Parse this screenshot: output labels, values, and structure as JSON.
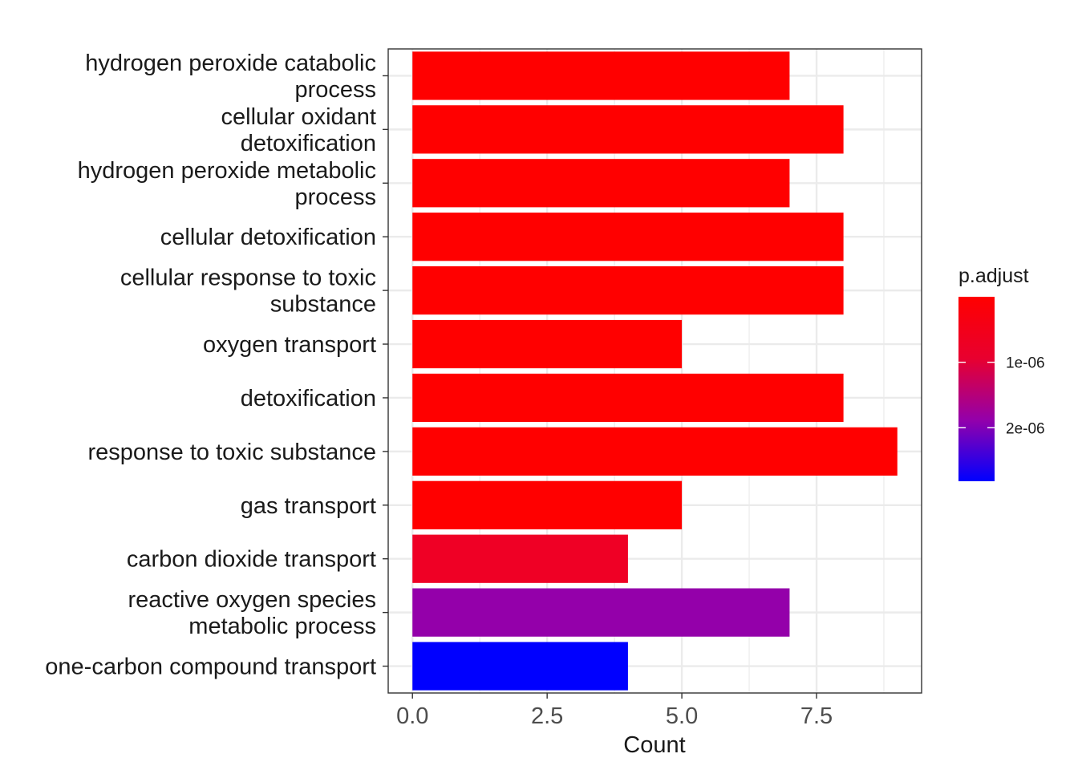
{
  "chart_data": {
    "type": "bar",
    "orientation": "horizontal",
    "categories": [
      "hydrogen peroxide catabolic process",
      "cellular oxidant detoxification",
      "hydrogen peroxide metabolic process",
      "cellular detoxification",
      "cellular response to toxic substance",
      "oxygen transport",
      "detoxification",
      "response to toxic substance",
      "gas transport",
      "carbon dioxide transport",
      "reactive oxygen species metabolic process",
      "one-carbon compound transport"
    ],
    "category_lines": [
      [
        "hydrogen peroxide catabolic",
        "process"
      ],
      [
        "cellular oxidant",
        "detoxification"
      ],
      [
        "hydrogen peroxide metabolic",
        "process"
      ],
      [
        "cellular detoxification"
      ],
      [
        "cellular response to toxic",
        "substance"
      ],
      [
        "oxygen transport"
      ],
      [
        "detoxification"
      ],
      [
        "response to toxic substance"
      ],
      [
        "gas transport"
      ],
      [
        "carbon dioxide transport"
      ],
      [
        "reactive oxygen species",
        "metabolic process"
      ],
      [
        "one-carbon compound transport"
      ]
    ],
    "values": [
      7,
      8,
      7,
      8,
      8,
      5,
      8,
      9,
      5,
      4,
      7,
      4
    ],
    "colors": [
      "#ff0000",
      "#ff0000",
      "#ff0000",
      "#ff0000",
      "#ff0000",
      "#ff0000",
      "#ff0000",
      "#ff0000",
      "#ff0000",
      "#ef0025",
      "#9400aa",
      "#0000ff"
    ],
    "xlabel": "Count",
    "ylabel": "",
    "xlim": [
      -0.45,
      9.45
    ],
    "xticks": [
      0,
      2.5,
      5,
      7.5
    ],
    "xtick_labels": [
      "0.0",
      "2.5",
      "5.0",
      "7.5"
    ],
    "grid": true,
    "legend": {
      "title": "p.adjust",
      "position": "right",
      "colors": [
        "#ff0000",
        "#e8002f",
        "#9400aa",
        "#0000ff"
      ],
      "tick_labels": [
        "1e-06",
        "2e-06"
      ]
    }
  }
}
